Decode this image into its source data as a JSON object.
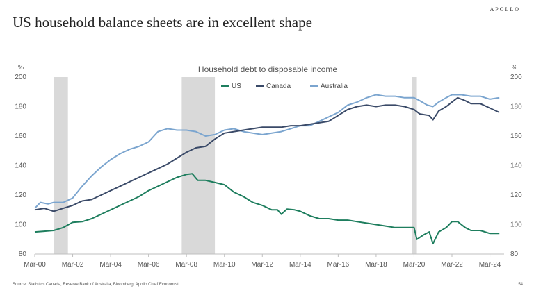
{
  "header": {
    "brand": "APOLLO",
    "title": "US household balance sheets are in excellent shape"
  },
  "footer": {
    "source": "Source: Statistics Canada, Reserve Bank of Australia, Bloomberg, Apollo Chief Economist",
    "page_number": "54"
  },
  "colors": {
    "US": "#1e7e5e",
    "Canada": "#3a4a68",
    "Australia": "#7ba5cf",
    "recession": "#d9d9d9"
  },
  "chart_data": {
    "type": "line",
    "title": "Household debt to disposable income",
    "ylabel_left": "%",
    "ylabel_right": "%",
    "xlim": [
      2000.0,
      2024.75
    ],
    "ylim": [
      80,
      200
    ],
    "yticks": [
      80,
      100,
      120,
      140,
      160,
      180,
      200
    ],
    "xticks": [
      {
        "value": 2000,
        "label": "Mar-00"
      },
      {
        "value": 2002,
        "label": "Mar-02"
      },
      {
        "value": 2004,
        "label": "Mar-04"
      },
      {
        "value": 2006,
        "label": "Mar-06"
      },
      {
        "value": 2008,
        "label": "Mar-08"
      },
      {
        "value": 2010,
        "label": "Mar-10"
      },
      {
        "value": 2012,
        "label": "Mar-12"
      },
      {
        "value": 2014,
        "label": "Mar-14"
      },
      {
        "value": 2016,
        "label": "Mar-16"
      },
      {
        "value": 2018,
        "label": "Mar-18"
      },
      {
        "value": 2020,
        "label": "Mar-20"
      },
      {
        "value": 2022,
        "label": "Mar-22"
      },
      {
        "value": 2024,
        "label": "Mar-24"
      }
    ],
    "recessions": [
      [
        2001.0,
        2001.75
      ],
      [
        2007.75,
        2009.5
      ],
      [
        2019.9,
        2020.15
      ]
    ],
    "legend": [
      "US",
      "Canada",
      "Australia"
    ],
    "series": [
      {
        "name": "US",
        "points": [
          [
            2000,
            95
          ],
          [
            2000.5,
            95.5
          ],
          [
            2001,
            96
          ],
          [
            2001.5,
            98
          ],
          [
            2002,
            101.5
          ],
          [
            2002.5,
            102
          ],
          [
            2003,
            104
          ],
          [
            2003.5,
            107
          ],
          [
            2004,
            110
          ],
          [
            2004.5,
            113
          ],
          [
            2005,
            116
          ],
          [
            2005.5,
            119
          ],
          [
            2006,
            123
          ],
          [
            2006.5,
            126
          ],
          [
            2007,
            129
          ],
          [
            2007.5,
            132
          ],
          [
            2008,
            134
          ],
          [
            2008.3,
            134.5
          ],
          [
            2008.6,
            130
          ],
          [
            2009,
            130
          ],
          [
            2009.5,
            128.5
          ],
          [
            2010,
            127
          ],
          [
            2010.5,
            122
          ],
          [
            2011,
            119
          ],
          [
            2011.5,
            115
          ],
          [
            2012,
            113
          ],
          [
            2012.5,
            110
          ],
          [
            2012.8,
            110
          ],
          [
            2013,
            107
          ],
          [
            2013.3,
            110.5
          ],
          [
            2013.7,
            110
          ],
          [
            2014,
            109
          ],
          [
            2014.5,
            106
          ],
          [
            2015,
            104
          ],
          [
            2015.5,
            104
          ],
          [
            2016,
            103
          ],
          [
            2016.5,
            103
          ],
          [
            2017,
            102
          ],
          [
            2017.5,
            101
          ],
          [
            2018,
            100
          ],
          [
            2018.5,
            99
          ],
          [
            2019,
            98
          ],
          [
            2019.5,
            98
          ],
          [
            2020,
            98
          ],
          [
            2020.15,
            90
          ],
          [
            2020.5,
            93
          ],
          [
            2020.8,
            95
          ],
          [
            2021,
            87
          ],
          [
            2021.3,
            95
          ],
          [
            2021.7,
            98
          ],
          [
            2022,
            102
          ],
          [
            2022.3,
            102
          ],
          [
            2022.7,
            98
          ],
          [
            2023,
            96
          ],
          [
            2023.5,
            96
          ],
          [
            2024,
            94
          ],
          [
            2024.5,
            94
          ]
        ]
      },
      {
        "name": "Canada",
        "points": [
          [
            2000,
            110
          ],
          [
            2000.5,
            111
          ],
          [
            2001,
            109
          ],
          [
            2001.5,
            111
          ],
          [
            2002,
            113
          ],
          [
            2002.5,
            116
          ],
          [
            2003,
            117
          ],
          [
            2003.5,
            120
          ],
          [
            2004,
            123
          ],
          [
            2004.5,
            126
          ],
          [
            2005,
            129
          ],
          [
            2005.5,
            132
          ],
          [
            2006,
            135
          ],
          [
            2006.5,
            138
          ],
          [
            2007,
            141
          ],
          [
            2007.5,
            145
          ],
          [
            2008,
            149
          ],
          [
            2008.5,
            152
          ],
          [
            2009,
            153
          ],
          [
            2009.5,
            158
          ],
          [
            2010,
            162
          ],
          [
            2010.5,
            163
          ],
          [
            2011,
            164
          ],
          [
            2011.5,
            165
          ],
          [
            2012,
            166
          ],
          [
            2012.5,
            166
          ],
          [
            2013,
            166
          ],
          [
            2013.5,
            167
          ],
          [
            2014,
            167
          ],
          [
            2014.5,
            168
          ],
          [
            2015,
            169
          ],
          [
            2015.5,
            170
          ],
          [
            2016,
            174
          ],
          [
            2016.5,
            178
          ],
          [
            2017,
            180
          ],
          [
            2017.5,
            181
          ],
          [
            2018,
            180
          ],
          [
            2018.5,
            181
          ],
          [
            2019,
            181
          ],
          [
            2019.5,
            180
          ],
          [
            2020,
            178
          ],
          [
            2020.3,
            175
          ],
          [
            2020.8,
            174
          ],
          [
            2021,
            171
          ],
          [
            2021.3,
            177
          ],
          [
            2021.7,
            180
          ],
          [
            2022,
            183
          ],
          [
            2022.3,
            186
          ],
          [
            2022.7,
            184
          ],
          [
            2023,
            182
          ],
          [
            2023.5,
            182
          ],
          [
            2024,
            179
          ],
          [
            2024.5,
            176
          ]
        ]
      },
      {
        "name": "Australia",
        "points": [
          [
            2000,
            111
          ],
          [
            2000.3,
            115
          ],
          [
            2000.7,
            114
          ],
          [
            2001,
            115
          ],
          [
            2001.5,
            115
          ],
          [
            2002,
            118
          ],
          [
            2002.5,
            126
          ],
          [
            2003,
            133
          ],
          [
            2003.5,
            139
          ],
          [
            2004,
            144
          ],
          [
            2004.5,
            148
          ],
          [
            2005,
            151
          ],
          [
            2005.5,
            153
          ],
          [
            2006,
            156
          ],
          [
            2006.5,
            163
          ],
          [
            2007,
            165
          ],
          [
            2007.5,
            164
          ],
          [
            2008,
            164
          ],
          [
            2008.5,
            163
          ],
          [
            2009,
            160
          ],
          [
            2009.5,
            161
          ],
          [
            2010,
            164
          ],
          [
            2010.5,
            165
          ],
          [
            2011,
            163
          ],
          [
            2011.5,
            162
          ],
          [
            2012,
            161
          ],
          [
            2012.5,
            162
          ],
          [
            2013,
            163
          ],
          [
            2013.5,
            165
          ],
          [
            2014,
            167
          ],
          [
            2014.5,
            167
          ],
          [
            2015,
            170
          ],
          [
            2015.5,
            173
          ],
          [
            2016,
            176
          ],
          [
            2016.5,
            181
          ],
          [
            2017,
            183
          ],
          [
            2017.5,
            186
          ],
          [
            2018,
            188
          ],
          [
            2018.5,
            187
          ],
          [
            2019,
            187
          ],
          [
            2019.5,
            186
          ],
          [
            2020,
            186
          ],
          [
            2020.3,
            184
          ],
          [
            2020.7,
            181
          ],
          [
            2021,
            180
          ],
          [
            2021.3,
            183
          ],
          [
            2021.7,
            186
          ],
          [
            2022,
            188
          ],
          [
            2022.5,
            188
          ],
          [
            2023,
            187
          ],
          [
            2023.5,
            187
          ],
          [
            2024,
            185
          ],
          [
            2024.5,
            186
          ]
        ]
      }
    ]
  }
}
